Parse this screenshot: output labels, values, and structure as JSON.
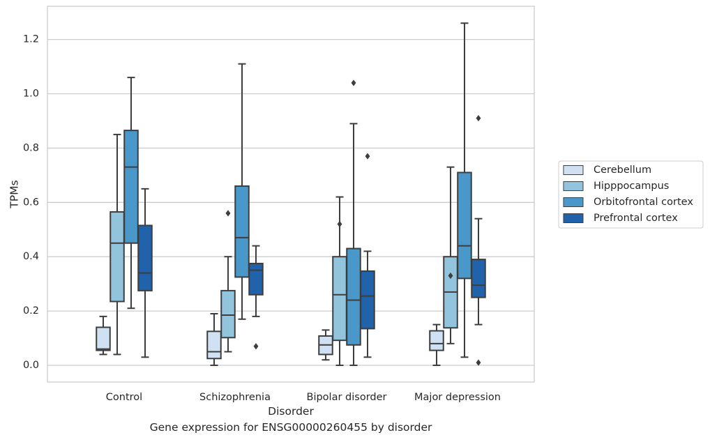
{
  "caption": "Gene expression for ENSG00000260455 by disorder",
  "chart_data": {
    "type": "box",
    "xlabel": "Disorder",
    "ylabel": "TPMs",
    "ylim": [
      -0.06,
      1.32
    ],
    "yticks": [
      0.0,
      0.2,
      0.4,
      0.6,
      0.8,
      1.0,
      1.2
    ],
    "ytick_labels": [
      "0.0",
      "0.2",
      "0.4",
      "0.6",
      "0.8",
      "1.0",
      "1.2"
    ],
    "grid": "horizontal",
    "legend_position": "right",
    "categories": [
      "Control",
      "Schizophrenia",
      "Bipolar disorder",
      "Major depression"
    ],
    "series": [
      {
        "name": "Cerebellum",
        "color": "#cfe1f2",
        "boxes": [
          {
            "whislo": 0.04,
            "q1": 0.055,
            "med": 0.06,
            "q3": 0.14,
            "whishi": 0.18,
            "fliers": []
          },
          {
            "whislo": 0.0,
            "q1": 0.025,
            "med": 0.05,
            "q3": 0.125,
            "whishi": 0.19,
            "fliers": []
          },
          {
            "whislo": 0.02,
            "q1": 0.04,
            "med": 0.075,
            "q3": 0.108,
            "whishi": 0.13,
            "fliers": []
          },
          {
            "whislo": 0.0,
            "q1": 0.055,
            "med": 0.08,
            "q3": 0.127,
            "whishi": 0.15,
            "fliers": []
          }
        ]
      },
      {
        "name": "Hipppocampus",
        "color": "#93c4de",
        "boxes": [
          {
            "whislo": 0.04,
            "q1": 0.235,
            "med": 0.45,
            "q3": 0.565,
            "whishi": 0.85,
            "fliers": []
          },
          {
            "whislo": 0.05,
            "q1": 0.102,
            "med": 0.185,
            "q3": 0.275,
            "whishi": 0.4,
            "fliers": [
              0.56
            ]
          },
          {
            "whislo": 0.0,
            "q1": 0.092,
            "med": 0.26,
            "q3": 0.4,
            "whishi": 0.62,
            "fliers": [
              0.52
            ]
          },
          {
            "whislo": 0.08,
            "q1": 0.138,
            "med": 0.27,
            "q3": 0.4,
            "whishi": 0.73,
            "fliers": [
              0.33
            ]
          }
        ]
      },
      {
        "name": "Orbitofrontal cortex",
        "color": "#4a98c9",
        "boxes": [
          {
            "whislo": 0.21,
            "q1": 0.45,
            "med": 0.73,
            "q3": 0.865,
            "whishi": 1.06,
            "fliers": []
          },
          {
            "whislo": 0.17,
            "q1": 0.325,
            "med": 0.47,
            "q3": 0.66,
            "whishi": 1.11,
            "fliers": []
          },
          {
            "whislo": 0.0,
            "q1": 0.075,
            "med": 0.24,
            "q3": 0.43,
            "whishi": 0.89,
            "fliers": [
              1.04
            ]
          },
          {
            "whislo": 0.03,
            "q1": 0.32,
            "med": 0.44,
            "q3": 0.71,
            "whishi": 1.26,
            "fliers": []
          }
        ]
      },
      {
        "name": "Prefrontal cortex",
        "color": "#2163aa",
        "boxes": [
          {
            "whislo": 0.03,
            "q1": 0.275,
            "med": 0.34,
            "q3": 0.515,
            "whishi": 0.65,
            "fliers": []
          },
          {
            "whislo": 0.18,
            "q1": 0.26,
            "med": 0.35,
            "q3": 0.375,
            "whishi": 0.44,
            "fliers": [
              0.07
            ]
          },
          {
            "whislo": 0.03,
            "q1": 0.135,
            "med": 0.255,
            "q3": 0.347,
            "whishi": 0.42,
            "fliers": [
              0.77
            ]
          },
          {
            "whislo": 0.15,
            "q1": 0.25,
            "med": 0.295,
            "q3": 0.39,
            "whishi": 0.54,
            "fliers": [
              0.91,
              0.01
            ]
          }
        ]
      }
    ]
  }
}
